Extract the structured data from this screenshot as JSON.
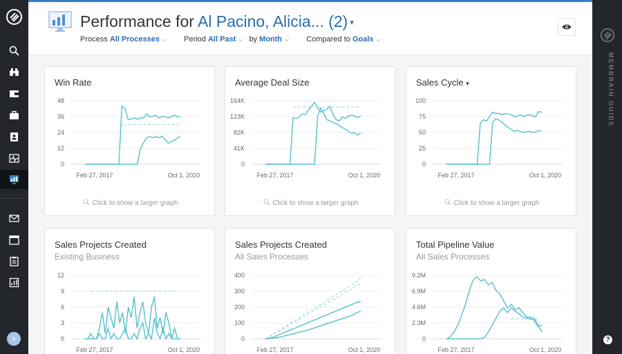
{
  "header": {
    "title_prefix": "Performance for ",
    "title_who": "Al Pacino, Alicia... (2)",
    "filters": {
      "process_label": "Process",
      "process_value": "All Processes",
      "period_label": "Period",
      "period_value": "All Past",
      "by_label": "by",
      "by_value": "Month",
      "compared_label": "Compared to",
      "compared_value": "Goals"
    }
  },
  "guide": {
    "label": "MEMBRAIN GUIDE"
  },
  "nav": {
    "items": [
      "search-icon",
      "binoculars-icon",
      "wallet-icon",
      "briefcase-icon",
      "contacts-icon",
      "activity-icon",
      "performance-icon",
      "mail-icon",
      "calendar-icon",
      "clipboard-icon",
      "report-icon"
    ],
    "active": "performance-icon"
  },
  "colors": {
    "accent": "#2b6cb0",
    "series": "#5fc3cf",
    "goal": "#a5dbe2",
    "nav_bg": "#23272b"
  },
  "cards": [
    {
      "title": "Win Rate",
      "subtitle": "",
      "foot": "Click to show a larger graph"
    },
    {
      "title": "Average Deal Size",
      "subtitle": "",
      "foot": "Click to show a larger graph"
    },
    {
      "title": "Sales Cycle",
      "title_caret": "▾",
      "subtitle": "",
      "foot": "Click to show a larger graph"
    },
    {
      "title": "Sales Projects Created",
      "subtitle": "Existing Business",
      "foot": ""
    },
    {
      "title": "Sales Projects Created",
      "subtitle": "All Sales Processes",
      "foot": ""
    },
    {
      "title": "Total Pipeline Value",
      "subtitle": "All Sales Processes",
      "foot": ""
    }
  ],
  "chart_data": [
    {
      "type": "line",
      "title": "Win Rate",
      "yticks": [
        "48",
        "36",
        "24",
        "12",
        "0"
      ],
      "ylim": [
        0,
        48
      ],
      "xticks": [
        "Feb 27, 2017",
        "Oct 1, 2020"
      ],
      "series": [
        {
          "values": [
            0,
            0,
            0,
            0,
            0,
            0,
            0,
            0,
            0,
            0,
            0,
            0,
            44,
            42,
            34,
            34,
            35,
            34,
            35,
            35,
            38,
            36,
            36,
            37,
            35,
            36,
            36,
            35,
            36,
            37,
            36,
            36
          ]
        },
        {
          "values": [
            0,
            0,
            0,
            0,
            0,
            0,
            0,
            0,
            0,
            0,
            0,
            0,
            0,
            0,
            0,
            0,
            0,
            0,
            12,
            16,
            20,
            21,
            20,
            21,
            20,
            21,
            19,
            16,
            17,
            18,
            20,
            21
          ]
        }
      ],
      "goal": [
        {
          "values": [
            null,
            null,
            null,
            null,
            null,
            null,
            null,
            null,
            null,
            null,
            null,
            30,
            30,
            30,
            30,
            30,
            30,
            30,
            30,
            30,
            30,
            30,
            30,
            30,
            30,
            30,
            30,
            30,
            30,
            30,
            30,
            30
          ]
        }
      ]
    },
    {
      "type": "line",
      "title": "Average Deal Size",
      "yticks": [
        "164K",
        "123K",
        "82K",
        "41K",
        "0"
      ],
      "ylim": [
        0,
        164000
      ],
      "xticks": [
        "Feb 27, 2017",
        "Oct 1, 2020"
      ],
      "series": [
        {
          "values": [
            0,
            0,
            0,
            0,
            0,
            0,
            0,
            0,
            0,
            120000,
            118000,
            122000,
            130000,
            128000,
            140000,
            150000,
            160000,
            145000,
            135000,
            138000,
            142000,
            150000,
            128000,
            115000,
            112000,
            122000,
            118000,
            125000,
            126000,
            125000,
            120000,
            125000
          ]
        },
        {
          "values": [
            0,
            0,
            0,
            0,
            0,
            0,
            0,
            0,
            0,
            0,
            0,
            0,
            0,
            0,
            0,
            0,
            0,
            125000,
            145000,
            130000,
            115000,
            112000,
            108000,
            105000,
            100000,
            95000,
            90000,
            85000,
            80000,
            82000,
            75000,
            82000
          ]
        }
      ],
      "goal": [
        {
          "values": [
            null,
            null,
            null,
            null,
            null,
            null,
            null,
            null,
            null,
            148000,
            148000,
            148000,
            148000,
            148000,
            148000,
            148000,
            148000,
            148000,
            148000,
            148000,
            148000,
            148000,
            148000,
            148000,
            148000,
            148000,
            148000,
            148000,
            148000,
            148000,
            148000,
            148000
          ]
        }
      ]
    },
    {
      "type": "line",
      "title": "Sales Cycle",
      "yticks": [
        "100",
        "75",
        "50",
        "25",
        "0"
      ],
      "ylim": [
        0,
        100
      ],
      "xticks": [
        "Feb 27, 2017",
        "Oct 1, 2020"
      ],
      "series": [
        {
          "values": [
            0,
            0,
            0,
            0,
            0,
            0,
            0,
            0,
            0,
            0,
            0,
            65,
            70,
            68,
            75,
            82,
            80,
            80,
            78,
            80,
            79,
            78,
            75,
            76,
            78,
            75,
            77,
            78,
            76,
            75,
            83,
            82
          ]
        },
        {
          "values": [
            0,
            0,
            0,
            0,
            0,
            0,
            0,
            0,
            0,
            0,
            0,
            0,
            0,
            0,
            0,
            65,
            72,
            70,
            66,
            62,
            58,
            55,
            52,
            53,
            52,
            50,
            51,
            52,
            50,
            51,
            53,
            52
          ]
        }
      ],
      "goal": []
    },
    {
      "type": "line",
      "title": "Sales Projects Created",
      "yticks": [
        "12",
        "9",
        "6",
        "3",
        "0"
      ],
      "ylim": [
        0,
        12
      ],
      "xticks": [
        "Feb 27, 2017",
        "Oct 1, 2020"
      ],
      "series": [
        {
          "values": [
            0,
            0,
            1,
            0,
            0,
            2,
            5,
            1,
            6,
            4,
            2,
            7,
            3,
            5,
            1,
            6,
            4,
            8,
            2,
            5,
            7,
            3,
            1,
            6,
            8,
            2,
            4,
            1,
            5,
            3,
            0,
            2,
            0,
            0
          ]
        },
        {
          "values": [
            0,
            0,
            0,
            0,
            0,
            1,
            0,
            0,
            2,
            0,
            1,
            0,
            0,
            1,
            2,
            0,
            0,
            1,
            0,
            2,
            3,
            0,
            1,
            0,
            4,
            1,
            0,
            2,
            0,
            1,
            0,
            0,
            0,
            0
          ]
        }
      ],
      "goal": [
        {
          "values": [
            null,
            null,
            9,
            9,
            9,
            9,
            9,
            9,
            9,
            9,
            9,
            9,
            9,
            9,
            9,
            9,
            9,
            9,
            9,
            9,
            9,
            9,
            9,
            9,
            9,
            9,
            9,
            9,
            9,
            9,
            9,
            9,
            null,
            null
          ]
        }
      ]
    },
    {
      "type": "line",
      "title": "Sales Projects Created",
      "yticks": [
        "400",
        "300",
        "200",
        "100",
        "0"
      ],
      "ylim": [
        0,
        400
      ],
      "xticks": [
        "Feb 27, 2017",
        "Oct 1, 2020"
      ],
      "series": [
        {
          "values": [
            0,
            5,
            10,
            20,
            30,
            40,
            50,
            60,
            70,
            80,
            90,
            100,
            110,
            120,
            130,
            140,
            150,
            160,
            170,
            180,
            190,
            200,
            210,
            220,
            230,
            235
          ]
        },
        {
          "values": [
            0,
            2,
            5,
            8,
            12,
            18,
            24,
            30,
            36,
            42,
            48,
            55,
            62,
            70,
            78,
            86,
            94,
            102,
            110,
            118,
            126,
            134,
            142,
            150,
            165,
            175
          ]
        }
      ],
      "goal": [
        {
          "values": [
            0,
            15,
            30,
            45,
            60,
            75,
            90,
            105,
            120,
            135,
            150,
            165,
            180,
            195,
            210,
            225,
            240,
            255,
            270,
            285,
            300,
            315,
            330,
            345,
            360,
            390
          ]
        },
        {
          "values": [
            0,
            12,
            26,
            40,
            54,
            68,
            82,
            96,
            110,
            124,
            138,
            152,
            166,
            180,
            194,
            208,
            222,
            236,
            250,
            264,
            278,
            292,
            306,
            320,
            335,
            350
          ]
        }
      ]
    },
    {
      "type": "line",
      "title": "Total Pipeline Value",
      "yticks": [
        "9.2M",
        "6.9M",
        "4.6M",
        "2.3M",
        "0"
      ],
      "ylim": [
        0,
        9200000
      ],
      "xticks": [
        "Feb 27, 2017",
        "Oct 1, 2020"
      ],
      "series": [
        {
          "values": [
            0,
            300000,
            1000000,
            2000000,
            3500000,
            5000000,
            7000000,
            8500000,
            9000000,
            8400000,
            8600000,
            7800000,
            8200000,
            7000000,
            6500000,
            5500000,
            4500000,
            5000000,
            4200000,
            4500000,
            3800000,
            3200000,
            2800000,
            3000000,
            2000000,
            1000000
          ]
        },
        {
          "values": [
            0,
            0,
            0,
            0,
            0,
            0,
            0,
            0,
            0,
            0,
            200000,
            1000000,
            2000000,
            3000000,
            4000000,
            4500000,
            3800000,
            4500000,
            4000000,
            3600000,
            3200000,
            3000000,
            3200000,
            2600000,
            1800000,
            2000000
          ]
        }
      ],
      "goal": [
        {
          "values": [
            null,
            null,
            null,
            null,
            null,
            null,
            null,
            null,
            null,
            null,
            null,
            null,
            null,
            null,
            null,
            null,
            null,
            2900000,
            2900000,
            2900000,
            2900000,
            2900000,
            2900000,
            2900000,
            2900000,
            null
          ]
        }
      ]
    }
  ]
}
